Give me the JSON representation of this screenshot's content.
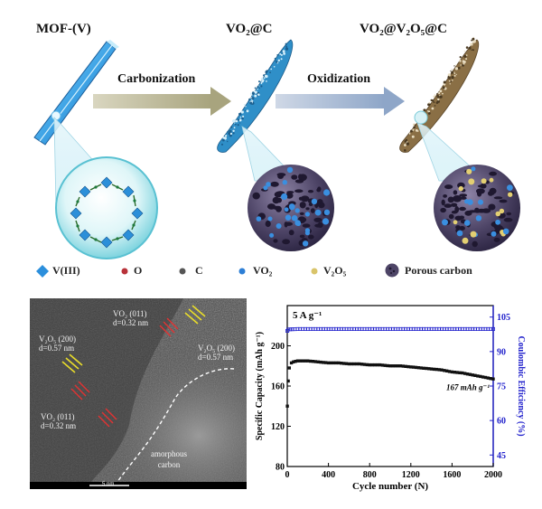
{
  "stages": {
    "mof": "MOF-(V)",
    "vo2c": "VO₂@C",
    "final": "VO₂@V₂O₅@C"
  },
  "arrows": {
    "carbonization": "Carbonization",
    "oxidization": "Oxidization"
  },
  "legend": [
    {
      "label": "V(III)",
      "symbol": "diamond",
      "color": "#2c8fdc"
    },
    {
      "label": "O",
      "symbol": "dot",
      "color": "#b8323a"
    },
    {
      "label": "C",
      "symbol": "dot",
      "color": "#555555"
    },
    {
      "label": "VO₂",
      "symbol": "dot",
      "color": "#2d7fd6"
    },
    {
      "label": "V₂O₅",
      "symbol": "dot",
      "color": "#d9c46a"
    },
    {
      "label": "Porous carbon",
      "symbol": "sphere",
      "color": "#5a4e7a"
    }
  ],
  "tem": {
    "labels": [
      {
        "plane": "VO₂ (011)",
        "spacing": "d=0.32 nm"
      },
      {
        "plane": "V₂O₅ (200)",
        "spacing": "d=0.57 nm"
      },
      {
        "plane": "V₂O₅ (200)",
        "spacing": "d=0.57 nm"
      },
      {
        "plane": "VO₂ (011)",
        "spacing": "d=0.32 nm"
      }
    ],
    "amorphous": [
      "amorphous",
      "carbon"
    ],
    "scale_bar": "5 nm"
  },
  "chart_data": {
    "type": "scatter",
    "annotation": "5 A g⁻¹",
    "end_annotation": "167 mAh g⁻¹",
    "xlabel": "Cycle number (N)",
    "ylabel_left": "Specific Capacity (mAh g⁻¹)",
    "ylabel_right": "Coulombic Efficiency (%)",
    "xlim": [
      0,
      2000
    ],
    "ylim_left": [
      80,
      240
    ],
    "ylim_right": [
      40,
      110
    ],
    "x_ticks": [
      "0",
      "400",
      "800",
      "1200",
      "1600",
      "2000"
    ],
    "y_ticks_left": [
      "80",
      "120",
      "160",
      "200"
    ],
    "y_ticks_right": [
      "45",
      "60",
      "75",
      "90",
      "105"
    ],
    "series": [
      {
        "color": "#111111",
        "axis": "left",
        "x": [
          1,
          10,
          20,
          40,
          60,
          100,
          150,
          200,
          300,
          400,
          500,
          600,
          700,
          800,
          900,
          1000,
          1100,
          1200,
          1300,
          1400,
          1500,
          1600,
          1700,
          1800,
          1900,
          2000
        ],
        "y": [
          140,
          165,
          178,
          183,
          184,
          185,
          185,
          185,
          184,
          183,
          183,
          182,
          182,
          181,
          181,
          180,
          180,
          179,
          178,
          177,
          176,
          174,
          173,
          171,
          169,
          167
        ]
      },
      {
        "color": "#2222cc",
        "axis": "right",
        "x": [
          1,
          10,
          50,
          100,
          200,
          300,
          400,
          500,
          600,
          700,
          800,
          900,
          1000,
          1100,
          1200,
          1300,
          1400,
          1500,
          1600,
          1700,
          1800,
          1900,
          2000
        ],
        "y": [
          99,
          99.6,
          99.7,
          99.8,
          99.8,
          99.8,
          99.8,
          99.8,
          99.8,
          99.8,
          99.8,
          99.8,
          99.8,
          99.8,
          99.8,
          99.8,
          99.8,
          99.8,
          99.8,
          99.8,
          99.8,
          99.8,
          99.8
        ]
      }
    ]
  }
}
